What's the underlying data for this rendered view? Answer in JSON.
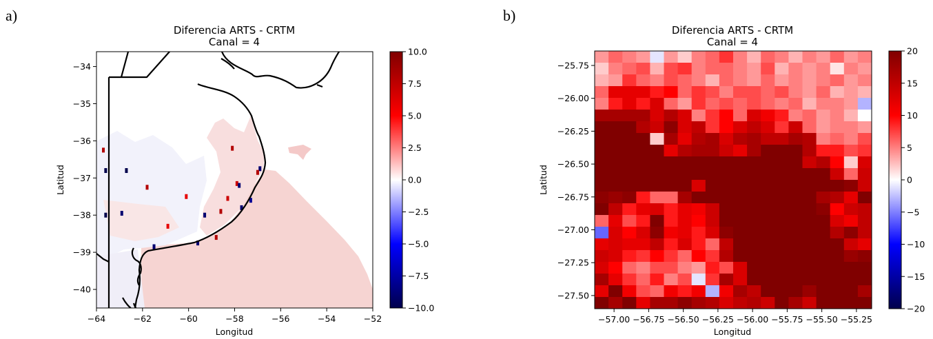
{
  "chart_data": [
    {
      "panel_label": "a)",
      "type": "heatmap",
      "title": "Diferencia ARTS - CRTM",
      "subtitle": "Canal = 4",
      "xlabel": "Longitud",
      "ylabel": "Latitud",
      "xlim": [
        -64,
        -52
      ],
      "ylim": [
        -40.5,
        -33.6
      ],
      "xticks": [
        -64,
        -62,
        -60,
        -58,
        -56,
        -54,
        -52
      ],
      "xtick_labels": [
        "−64",
        "−62",
        "−60",
        "−58",
        "−56",
        "−54",
        "−52"
      ],
      "yticks": [
        -34,
        -35,
        -36,
        -37,
        -38,
        -39,
        -40
      ],
      "ytick_labels": [
        "−34",
        "−35",
        "−36",
        "−37",
        "−38",
        "−39",
        "−40"
      ],
      "colorbar": {
        "colormap": "seismic",
        "range": [
          -10,
          10
        ],
        "ticks": [
          10,
          7.5,
          5,
          2.5,
          0,
          -2.5,
          -5,
          -7.5,
          -10
        ],
        "tick_labels": [
          "10.0",
          "7.5",
          "5.0",
          "2.5",
          "0.0",
          "−2.5",
          "−5.0",
          "−7.5",
          "−10.0"
        ]
      },
      "grid": false,
      "notes_visible": "Ocean pixels mostly slightly positive (~0.5–1); coastal/land-edge pixels slightly negative; scattered outliers",
      "outliers": [
        {
          "lon": -63.7,
          "lat": -36.25,
          "value": 8
        },
        {
          "lon": -63.6,
          "lat": -36.8,
          "value": -10
        },
        {
          "lon": -62.7,
          "lat": -36.8,
          "value": -10
        },
        {
          "lon": -63.6,
          "lat": -38.0,
          "value": -10
        },
        {
          "lon": -62.9,
          "lat": -37.95,
          "value": -9
        },
        {
          "lon": -61.8,
          "lat": -37.25,
          "value": 8
        },
        {
          "lon": -61.5,
          "lat": -38.85,
          "value": -9
        },
        {
          "lon": -59.6,
          "lat": -38.75,
          "value": -9
        },
        {
          "lon": -58.8,
          "lat": -38.6,
          "value": 8
        },
        {
          "lon": -58.1,
          "lat": -36.2,
          "value": 8
        },
        {
          "lon": -57.9,
          "lat": -37.15,
          "value": 7
        },
        {
          "lon": -57.8,
          "lat": -37.2,
          "value": -9
        },
        {
          "lon": -58.6,
          "lat": -37.9,
          "value": 8
        },
        {
          "lon": -59.3,
          "lat": -38.0,
          "value": -9
        },
        {
          "lon": -57.7,
          "lat": -37.8,
          "value": -9
        },
        {
          "lon": -56.9,
          "lat": -36.75,
          "value": -9
        },
        {
          "lon": -57.0,
          "lat": -36.85,
          "value": 8
        },
        {
          "lon": -57.3,
          "lat": -37.6,
          "value": -8
        },
        {
          "lon": -58.3,
          "lat": -37.55,
          "value": 7
        },
        {
          "lon": -60.1,
          "lat": -37.5,
          "value": 6
        },
        {
          "lon": -60.9,
          "lat": -38.3,
          "value": 6
        }
      ]
    },
    {
      "panel_label": "b)",
      "type": "heatmap",
      "title": "Diferencia ARTS - CRTM",
      "subtitle": "Canal = 4",
      "xlabel": "Longitud",
      "ylabel": "Latitud",
      "xlim": [
        -57.14,
        -55.14
      ],
      "ylim": [
        -27.6,
        -25.64
      ],
      "xticks": [
        -57.0,
        -56.75,
        -56.5,
        -56.25,
        -56.0,
        -55.75,
        -55.5,
        -55.25
      ],
      "xtick_labels": [
        "−57.00",
        "−56.75",
        "−56.50",
        "−56.25",
        "−56.00",
        "−55.75",
        "−55.50",
        "−55.25"
      ],
      "yticks": [
        -25.75,
        -26.0,
        -26.25,
        -26.5,
        -26.75,
        -27.0,
        -27.25,
        -27.5
      ],
      "ytick_labels": [
        "−25.75",
        "−26.00",
        "−26.25",
        "−26.50",
        "−26.75",
        "−27.00",
        "−27.25",
        "−27.50"
      ],
      "colorbar": {
        "colormap": "seismic",
        "range": [
          -20,
          20
        ],
        "ticks": [
          20,
          15,
          10,
          5,
          0,
          -5,
          -10,
          -15,
          -20
        ],
        "tick_labels": [
          "20",
          "15",
          "10",
          "5",
          "0",
          "−5",
          "−10",
          "−15",
          "−20"
        ]
      },
      "grid": false,
      "rows_north_to_south": [
        [
          4,
          6,
          5,
          4,
          -1,
          4,
          2,
          5,
          6,
          8,
          5,
          3,
          6,
          5,
          3,
          5,
          4,
          6,
          4,
          5
        ],
        [
          2,
          5,
          6,
          7,
          3,
          7,
          8,
          5,
          6,
          6,
          5,
          4,
          7,
          3,
          5,
          4,
          5,
          1,
          5,
          4
        ],
        [
          3,
          4,
          8,
          6,
          5,
          7,
          6,
          5,
          3,
          6,
          5,
          4,
          6,
          4,
          5,
          4,
          5,
          6,
          4,
          5
        ],
        [
          6,
          12,
          12,
          12,
          9,
          10,
          6,
          8,
          7,
          5,
          7,
          7,
          6,
          7,
          5,
          4,
          6,
          3,
          4,
          3
        ],
        [
          5,
          9,
          12,
          9,
          13,
          6,
          4,
          8,
          6,
          7,
          6,
          7,
          6,
          5,
          6,
          3,
          5,
          5,
          4,
          -3
        ],
        [
          17,
          17,
          17,
          17,
          13,
          16,
          13,
          5,
          8,
          10,
          6,
          13,
          11,
          9,
          5,
          6,
          4,
          5,
          3,
          0
        ],
        [
          20,
          20,
          20,
          16,
          14,
          19,
          13,
          15,
          8,
          10,
          13,
          15,
          13,
          8,
          14,
          6,
          4,
          5,
          5,
          4
        ],
        [
          20,
          20,
          20,
          20,
          2,
          17,
          12,
          16,
          17,
          13,
          16,
          17,
          15,
          15,
          17,
          16,
          5,
          6,
          5,
          7
        ],
        [
          20,
          20,
          20,
          20,
          20,
          12,
          16,
          17,
          17,
          14,
          12,
          17,
          20,
          20,
          20,
          16,
          9,
          9,
          7,
          8
        ],
        [
          20,
          20,
          20,
          20,
          20,
          20,
          20,
          20,
          20,
          20,
          20,
          20,
          20,
          20,
          20,
          14,
          16,
          10,
          2,
          13
        ],
        [
          20,
          20,
          20,
          20,
          20,
          20,
          20,
          20,
          20,
          20,
          20,
          20,
          20,
          20,
          20,
          20,
          20,
          14,
          6,
          14
        ],
        [
          20,
          20,
          20,
          20,
          20,
          20,
          20,
          13,
          20,
          20,
          20,
          20,
          20,
          20,
          20,
          20,
          20,
          20,
          19,
          14
        ],
        [
          19,
          18,
          19,
          9,
          6,
          6,
          17,
          20,
          20,
          20,
          20,
          20,
          20,
          20,
          20,
          20,
          17,
          16,
          12,
          20
        ],
        [
          20,
          15,
          9,
          12,
          13,
          9,
          12,
          11,
          14,
          20,
          20,
          20,
          20,
          20,
          20,
          20,
          19,
          10,
          14,
          15
        ],
        [
          6,
          12,
          7,
          9,
          20,
          9,
          12,
          10,
          14,
          20,
          20,
          20,
          20,
          20,
          20,
          20,
          20,
          13,
          11,
          15
        ],
        [
          -6,
          13,
          10,
          13,
          19,
          11,
          12,
          9,
          13,
          19,
          20,
          20,
          20,
          20,
          20,
          20,
          20,
          16,
          19,
          15
        ],
        [
          12,
          13,
          12,
          12,
          15,
          9,
          13,
          9,
          6,
          15,
          20,
          20,
          20,
          20,
          20,
          20,
          20,
          20,
          14,
          12
        ],
        [
          14,
          13,
          9,
          8,
          10,
          8,
          6,
          10,
          8,
          16,
          20,
          20,
          20,
          20,
          20,
          20,
          20,
          20,
          18,
          19
        ],
        [
          13,
          10,
          6,
          5,
          7,
          7,
          5,
          4,
          9,
          7,
          13,
          20,
          20,
          20,
          20,
          20,
          20,
          20,
          20,
          20
        ],
        [
          17,
          12,
          8,
          6,
          9,
          5,
          7,
          -1,
          8,
          17,
          13,
          20,
          20,
          20,
          20,
          20,
          20,
          20,
          20,
          20
        ],
        [
          12,
          20,
          11,
          7,
          6,
          11,
          9,
          11,
          -3,
          11,
          17,
          15,
          20,
          20,
          20,
          18,
          20,
          20,
          20,
          17
        ],
        [
          20,
          17,
          20,
          12,
          17,
          17,
          19,
          17,
          16,
          13,
          15,
          16,
          14,
          20,
          17,
          14,
          20,
          20,
          20,
          20
        ]
      ]
    }
  ]
}
